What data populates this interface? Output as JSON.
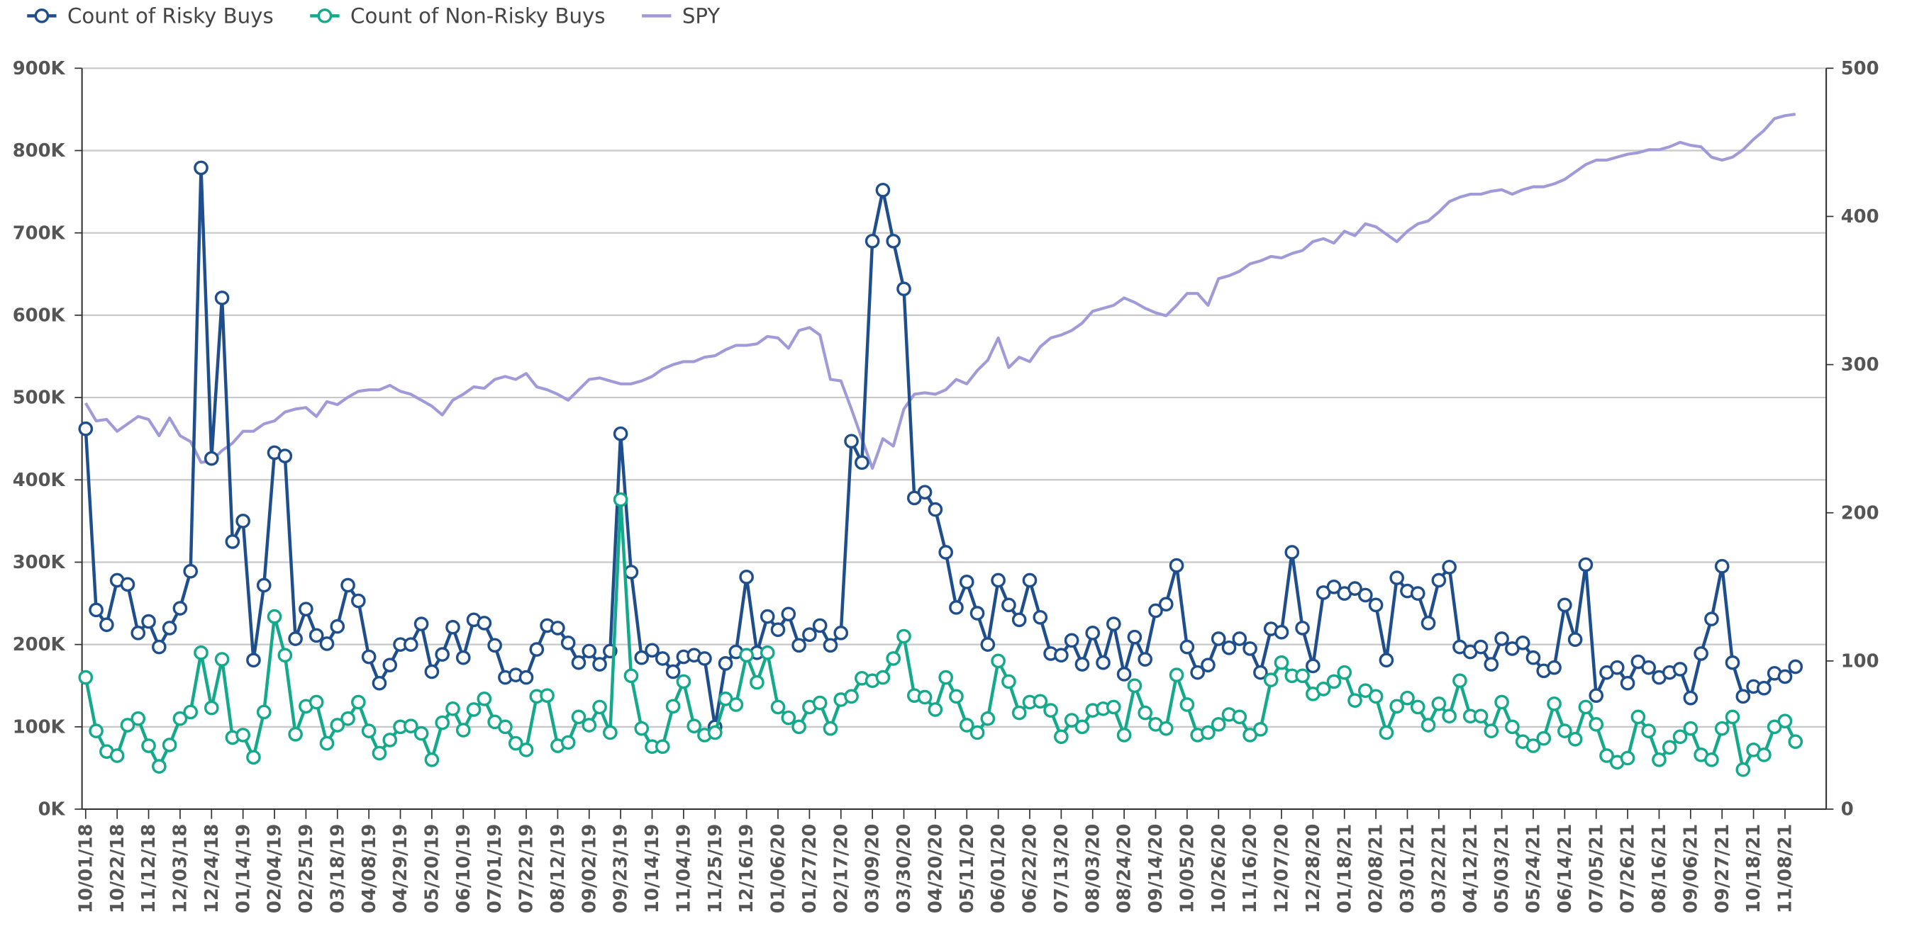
{
  "chart_data": {
    "type": "line",
    "legend": "top-left",
    "grid": true,
    "categories": [
      "10/01/18",
      null,
      null,
      "10/22/18",
      null,
      null,
      "11/12/18",
      null,
      null,
      "12/03/18",
      null,
      null,
      "12/24/18",
      null,
      null,
      "01/14/19",
      null,
      null,
      "02/04/19",
      null,
      null,
      "02/25/19",
      null,
      null,
      "03/18/19",
      null,
      null,
      "04/08/19",
      null,
      null,
      "04/29/19",
      null,
      null,
      "05/20/19",
      null,
      null,
      "06/10/19",
      null,
      null,
      "07/01/19",
      null,
      null,
      "07/22/19",
      null,
      null,
      "08/12/19",
      null,
      null,
      "09/02/19",
      null,
      null,
      "09/23/19",
      null,
      null,
      "10/14/19",
      null,
      null,
      "11/04/19",
      null,
      null,
      "11/25/19",
      null,
      null,
      "12/16/19",
      null,
      null,
      "01/06/20",
      null,
      null,
      "01/27/20",
      null,
      null,
      "02/17/20",
      null,
      null,
      "03/09/20",
      null,
      null,
      "03/30/20",
      null,
      null,
      "04/20/20",
      null,
      null,
      "05/11/20",
      null,
      null,
      "06/01/20",
      null,
      null,
      "06/22/20",
      null,
      null,
      "07/13/20",
      null,
      null,
      "08/03/20",
      null,
      null,
      "08/24/20",
      null,
      null,
      "09/14/20",
      null,
      null,
      "10/05/20",
      null,
      null,
      "10/26/20",
      null,
      null,
      "11/16/20",
      null,
      null,
      "12/07/20",
      null,
      null,
      "12/28/20",
      null,
      null,
      "01/18/21",
      null,
      null,
      "02/08/21",
      null,
      null,
      "03/01/21",
      null,
      null,
      "03/22/21",
      null,
      null,
      "04/12/21",
      null,
      null,
      "05/03/21",
      null,
      null,
      "05/24/21",
      null,
      null,
      "06/14/21",
      null,
      null,
      "07/05/21",
      null,
      null,
      "07/26/21",
      null,
      null,
      "08/16/21",
      null,
      null,
      "09/06/21",
      null,
      null,
      "09/27/21",
      null,
      null,
      "10/18/21",
      null,
      null,
      "11/08/21",
      null
    ],
    "ylim": [
      0,
      900000
    ],
    "yticks": [
      {
        "value": 0,
        "label": "0K"
      },
      {
        "value": 100000,
        "label": "100K"
      },
      {
        "value": 200000,
        "label": "200K"
      },
      {
        "value": 300000,
        "label": "300K"
      },
      {
        "value": 400000,
        "label": "400K"
      },
      {
        "value": 500000,
        "label": "500K"
      },
      {
        "value": 600000,
        "label": "600K"
      },
      {
        "value": 700000,
        "label": "700K"
      },
      {
        "value": 800000,
        "label": "800K"
      },
      {
        "value": 900000,
        "label": "900K"
      }
    ],
    "y2lim": [
      0,
      500
    ],
    "y2ticks": [
      0,
      100,
      200,
      300,
      400,
      500
    ],
    "series": [
      {
        "name": "Count of Risky Buys",
        "color": "#1f4e8c",
        "markers": true,
        "values": [
          462000,
          242000,
          224000,
          278000,
          273000,
          214000,
          228000,
          197000,
          220000,
          244000,
          289000,
          779000,
          426000,
          621000,
          325000,
          350000,
          181000,
          272000,
          433000,
          429000,
          207000,
          243000,
          211000,
          201000,
          222000,
          272000,
          253000,
          185000,
          153000,
          175000,
          200000,
          200000,
          225000,
          167000,
          188000,
          221000,
          184000,
          230000,
          226000,
          199000,
          160000,
          163000,
          160000,
          194000,
          223000,
          220000,
          202000,
          178000,
          192000,
          176000,
          192000,
          456000,
          288000,
          184000,
          193000,
          183000,
          167000,
          185000,
          187000,
          183000,
          100000,
          177000,
          191000,
          282000,
          190000,
          234000,
          218000,
          237000,
          199000,
          212000,
          223000,
          199000,
          214000,
          447000,
          421000,
          690000,
          752000,
          690000,
          632000,
          378000,
          385000,
          364000,
          312000,
          245000,
          276000,
          238000,
          200000,
          278000,
          248000,
          230000,
          278000,
          233000,
          189000,
          187000,
          205000,
          176000,
          214000,
          178000,
          225000,
          164000,
          209000,
          182000,
          241000,
          249000,
          296000,
          197000,
          166000,
          175000,
          207000,
          196000,
          207000,
          195000,
          166000,
          219000,
          215000,
          312000,
          220000,
          174000,
          263000,
          270000,
          262000,
          268000,
          260000,
          248000,
          181000,
          281000,
          265000,
          262000,
          226000,
          278000,
          294000,
          197000,
          191000,
          197000,
          176000,
          207000,
          195000,
          202000,
          184000,
          168000,
          172000,
          248000,
          206000,
          297000,
          138000,
          166000,
          172000,
          153000,
          179000,
          172000,
          160000,
          166000,
          170000,
          135000,
          189000,
          231000,
          295000,
          178000,
          137000,
          149000,
          147000,
          165000,
          161000,
          173000
        ]
      },
      {
        "name": "Count of Non-Risky Buys",
        "color": "#14a98a",
        "markers": true,
        "values": [
          160000,
          95000,
          70000,
          65000,
          102000,
          110000,
          77000,
          52000,
          78000,
          110000,
          118000,
          190000,
          123000,
          182000,
          87000,
          90000,
          63000,
          118000,
          234000,
          187000,
          91000,
          125000,
          130000,
          80000,
          102000,
          110000,
          130000,
          95000,
          68000,
          84000,
          100000,
          101000,
          92000,
          60000,
          105000,
          122000,
          96000,
          121000,
          134000,
          106000,
          100000,
          80000,
          72000,
          137000,
          138000,
          77000,
          81000,
          112000,
          102000,
          124000,
          93000,
          376000,
          162000,
          98000,
          76000,
          76000,
          125000,
          155000,
          101000,
          90000,
          93000,
          134000,
          127000,
          187000,
          154000,
          190000,
          124000,
          111000,
          100000,
          124000,
          129000,
          98000,
          133000,
          137000,
          159000,
          156000,
          160000,
          183000,
          210000,
          138000,
          136000,
          121000,
          160000,
          137000,
          102000,
          93000,
          110000,
          180000,
          155000,
          117000,
          130000,
          131000,
          120000,
          88000,
          108000,
          100000,
          120000,
          122000,
          124000,
          90000,
          150000,
          117000,
          103000,
          98000,
          163000,
          127000,
          90000,
          93000,
          103000,
          115000,
          112000,
          90000,
          97000,
          157000,
          178000,
          162000,
          162000,
          140000,
          146000,
          155000,
          166000,
          132000,
          144000,
          137000,
          93000,
          125000,
          135000,
          124000,
          102000,
          128000,
          113000,
          156000,
          113000,
          113000,
          95000,
          130000,
          100000,
          82000,
          77000,
          86000,
          128000,
          95000,
          85000,
          124000,
          103000,
          65000,
          57000,
          62000,
          112000,
          95000,
          60000,
          75000,
          88000,
          98000,
          66000,
          60000,
          98000,
          112000,
          48000,
          72000,
          66000,
          100000,
          107000,
          82000
        ]
      },
      {
        "name": "SPY",
        "color": "#a09ad8",
        "axis": "y2",
        "markers": false,
        "values": [
          274,
          262,
          263,
          255,
          260,
          265,
          263,
          252,
          264,
          252,
          248,
          234,
          235,
          242,
          247,
          255,
          255,
          260,
          262,
          268,
          270,
          271,
          265,
          275,
          273,
          278,
          282,
          283,
          283,
          286,
          282,
          280,
          276,
          272,
          266,
          276,
          280,
          285,
          284,
          290,
          292,
          290,
          294,
          285,
          283,
          280,
          276,
          283,
          290,
          291,
          289,
          287,
          287,
          289,
          292,
          297,
          300,
          302,
          302,
          305,
          306,
          310,
          313,
          313,
          314,
          319,
          318,
          311,
          323,
          325,
          320,
          290,
          289,
          270,
          250,
          230,
          250,
          245,
          270,
          280,
          281,
          280,
          283,
          290,
          287,
          296,
          303,
          318,
          298,
          305,
          302,
          312,
          318,
          320,
          323,
          328,
          336,
          338,
          340,
          345,
          342,
          338,
          335,
          333,
          340,
          348,
          348,
          340,
          358,
          360,
          363,
          368,
          370,
          373,
          372,
          375,
          377,
          383,
          385,
          382,
          390,
          387,
          395,
          393,
          388,
          383,
          390,
          395,
          397,
          403,
          410,
          413,
          415,
          415,
          417,
          418,
          415,
          418,
          420,
          420,
          422,
          425,
          430,
          435,
          438,
          438,
          440,
          442,
          443,
          445,
          445,
          447,
          450,
          448,
          447,
          440,
          438,
          440,
          445,
          452,
          458,
          466,
          468,
          469
        ]
      }
    ]
  }
}
